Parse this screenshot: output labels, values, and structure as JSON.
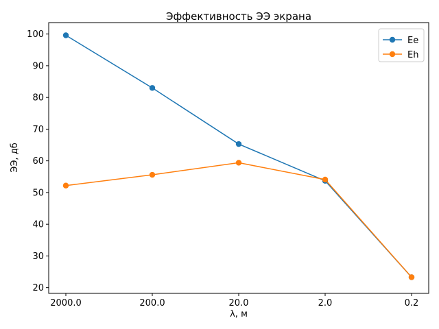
{
  "chart_data": {
    "type": "line",
    "title": "Эффективность ЭЭ экрана",
    "xlabel": "λ, м",
    "ylabel": "ЭЭ, дб",
    "categories": [
      "2000.0",
      "200.0",
      "20.0",
      "2.0",
      "0.2"
    ],
    "ylim": [
      18.2,
      103.6
    ],
    "yticks": [
      20,
      30,
      40,
      50,
      60,
      70,
      80,
      90,
      100
    ],
    "grid": false,
    "legend_position": "top-right",
    "series": [
      {
        "name": "Ee",
        "color": "#1f77b4",
        "values": [
          99.6,
          83.0,
          65.3,
          53.7,
          23.3
        ]
      },
      {
        "name": "Eh",
        "color": "#ff7f0e",
        "values": [
          52.2,
          55.6,
          59.4,
          54.1,
          23.3
        ]
      }
    ]
  }
}
